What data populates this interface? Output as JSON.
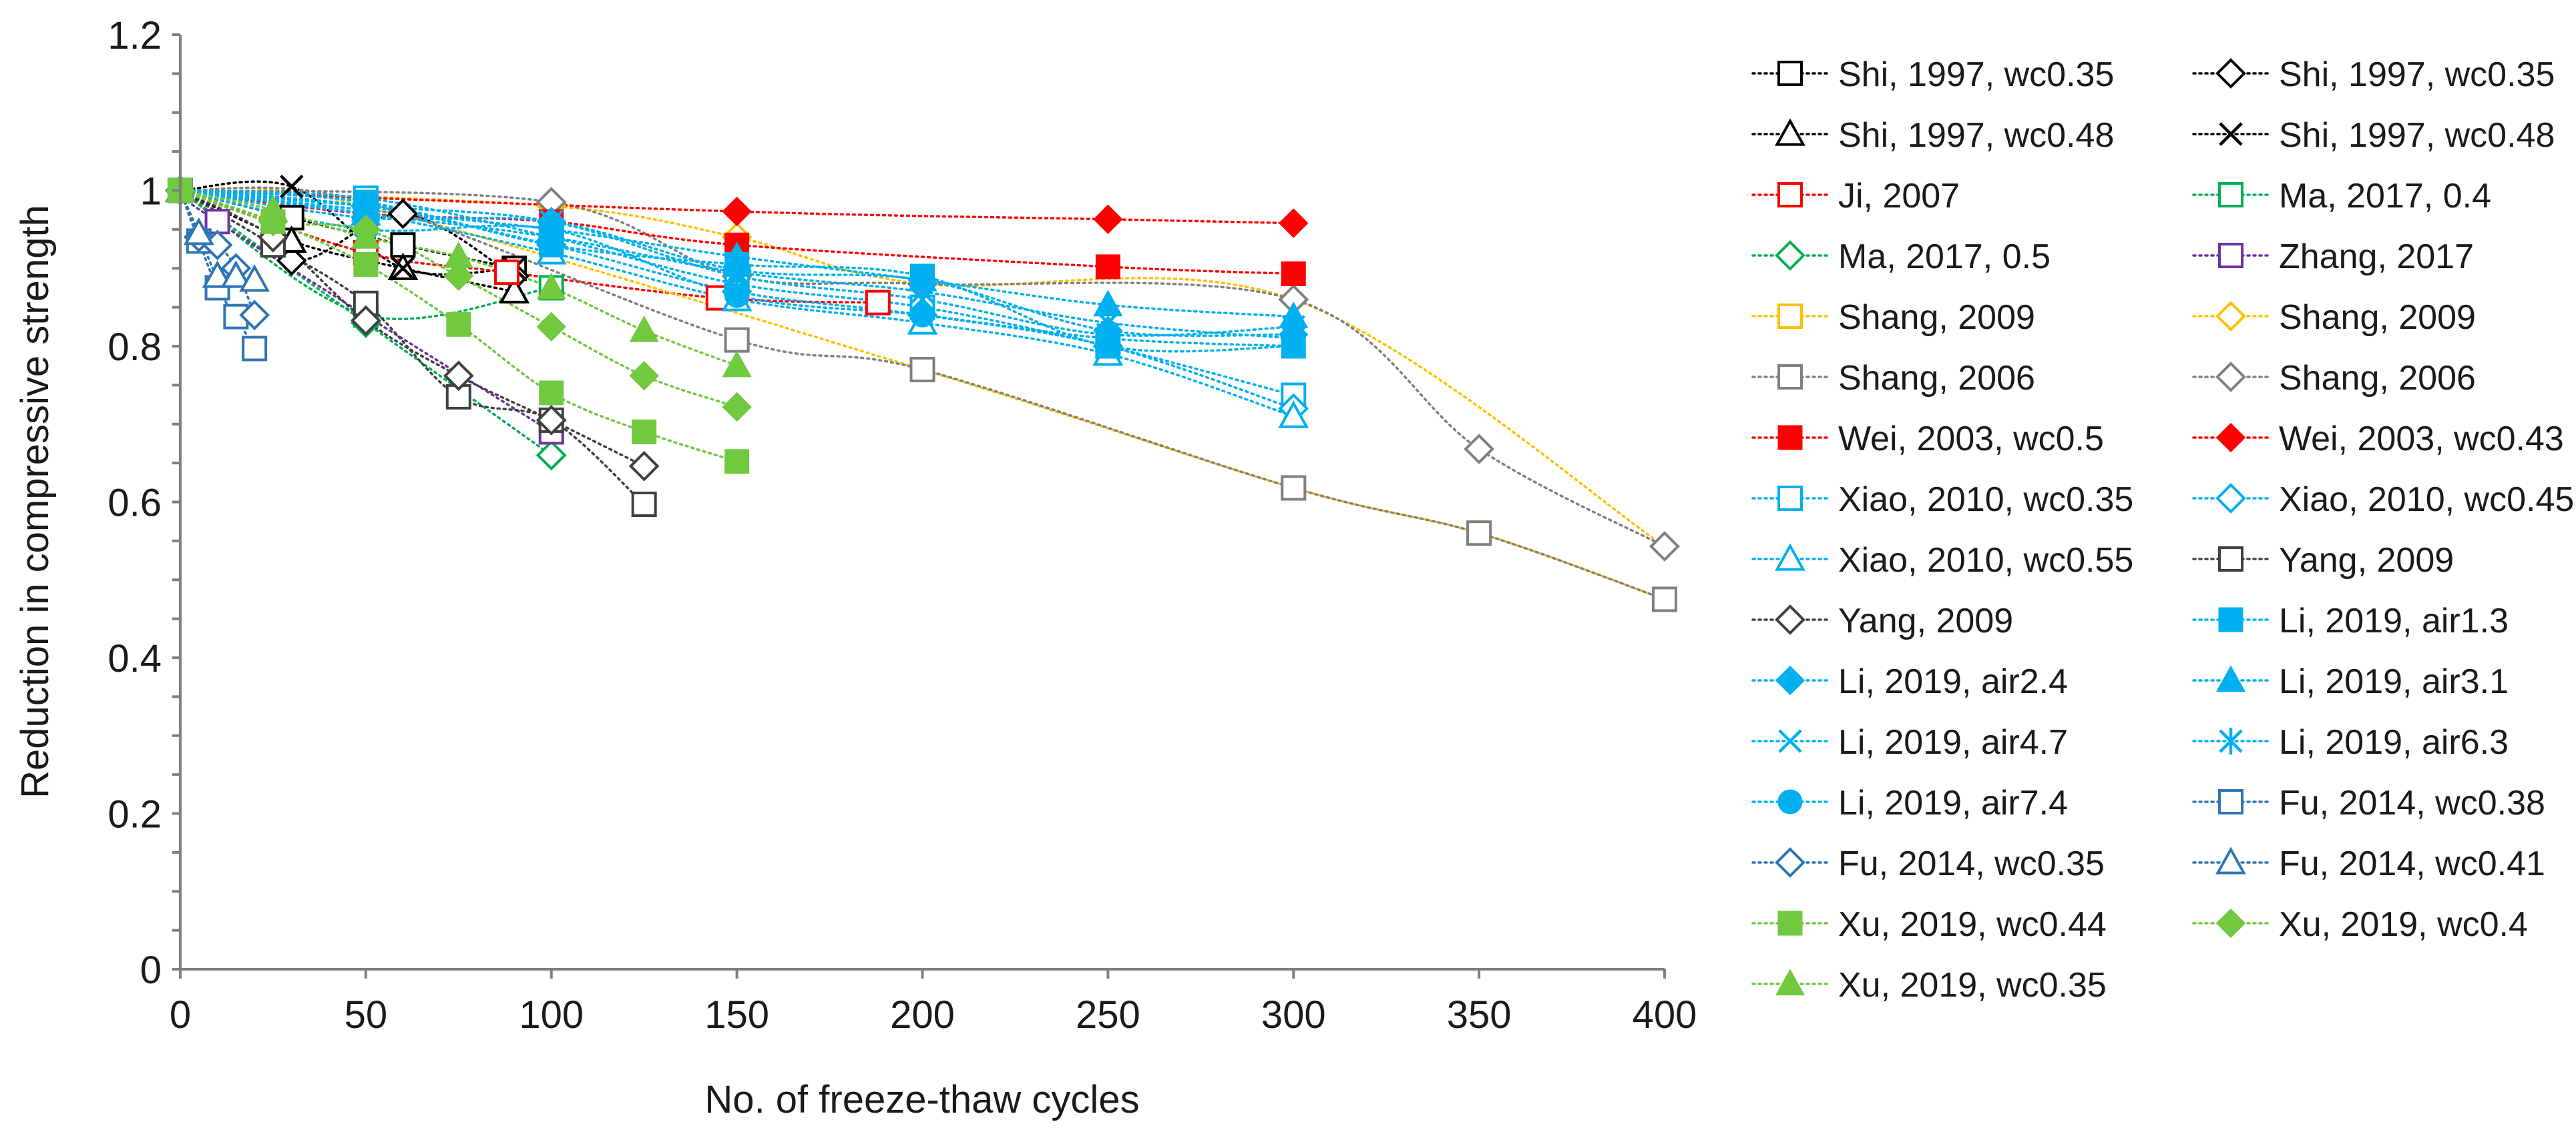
{
  "chart_data": {
    "type": "scatter",
    "title": "",
    "xlabel": "No. of freeze-thaw cycles",
    "ylabel": "Reduction in compressive strength",
    "xlim": [
      0,
      400
    ],
    "ylim": [
      0,
      1.2
    ],
    "x_ticks": [
      "0",
      "50",
      "100",
      "150",
      "200",
      "250",
      "300",
      "350",
      "400"
    ],
    "y_ticks": [
      "0",
      "0.2",
      "0.4",
      "0.6",
      "0.8",
      "1",
      "1.2"
    ],
    "grid": false,
    "legend_position": "right",
    "series": [
      {
        "name": "Shi, 1997, wc0.35",
        "color": "#000000",
        "marker": "square-open",
        "x": [
          0,
          30,
          60,
          90
        ],
        "y": [
          1.0,
          0.965,
          0.93,
          0.9
        ]
      },
      {
        "name": "Shi, 1997, wc0.35",
        "color": "#000000",
        "marker": "diamond-open",
        "x": [
          0,
          30,
          60,
          90
        ],
        "y": [
          1.0,
          0.91,
          0.97,
          0.89
        ]
      },
      {
        "name": "Shi, 1997, wc0.48",
        "color": "#000000",
        "marker": "triangle-open",
        "x": [
          0,
          30,
          60,
          90
        ],
        "y": [
          1.0,
          0.935,
          0.9,
          0.87
        ]
      },
      {
        "name": "Shi, 1997, wc0.48",
        "color": "#000000",
        "marker": "x",
        "x": [
          0,
          30,
          60,
          90
        ],
        "y": [
          1.0,
          1.005,
          0.9,
          0.9
        ]
      },
      {
        "name": "Ji, 2007",
        "color": "#ff0000",
        "marker": "square-open",
        "x": [
          0,
          50,
          88,
          145,
          188
        ],
        "y": [
          1.0,
          0.92,
          0.895,
          0.862,
          0.856
        ]
      },
      {
        "name": "Ma, 2017, 0.4",
        "color": "#00b050",
        "marker": "square-open",
        "x": [
          0,
          50,
          100
        ],
        "y": [
          1.0,
          0.84,
          0.875
        ]
      },
      {
        "name": "Ma, 2017, 0.5",
        "color": "#00b050",
        "marker": "diamond-open",
        "x": [
          0,
          50,
          100
        ],
        "y": [
          1.0,
          0.83,
          0.66
        ]
      },
      {
        "name": "Zhang, 2017",
        "color": "#7030a0",
        "marker": "square-open",
        "x": [
          0,
          10,
          100
        ],
        "y": [
          1.0,
          0.96,
          0.69
        ]
      },
      {
        "name": "Shang, 2009",
        "color": "#ffc000",
        "marker": "square-open",
        "x": [
          0,
          50,
          200,
          300,
          350,
          400
        ],
        "y": [
          1.0,
          0.98,
          0.77,
          0.618,
          0.56,
          0.475
        ]
      },
      {
        "name": "Shang, 2009",
        "color": "#ffc000",
        "marker": "diamond-open",
        "x": [
          0,
          100,
          150,
          200,
          300,
          400
        ],
        "y": [
          1.0,
          0.98,
          0.94,
          0.88,
          0.86,
          0.543
        ]
      },
      {
        "name": "Shang, 2006",
        "color": "#808080",
        "marker": "square-open",
        "x": [
          0,
          50,
          150,
          200,
          300,
          350,
          400
        ],
        "y": [
          1.0,
          0.985,
          0.808,
          0.77,
          0.618,
          0.56,
          0.475
        ]
      },
      {
        "name": "Shang, 2006",
        "color": "#808080",
        "marker": "diamond-open",
        "x": [
          0,
          100,
          150,
          200,
          300,
          350,
          400
        ],
        "y": [
          1.0,
          0.985,
          0.89,
          0.88,
          0.86,
          0.668,
          0.543
        ]
      },
      {
        "name": "Wei, 2003, wc0.5",
        "color": "#ff0000",
        "marker": "square-filled",
        "x": [
          0,
          50,
          100,
          150,
          250,
          300
        ],
        "y": [
          1.0,
          0.97,
          0.96,
          0.93,
          0.902,
          0.893
        ]
      },
      {
        "name": "Wei, 2003, wc0.43",
        "color": "#ff0000",
        "marker": "diamond-filled",
        "x": [
          0,
          150,
          250,
          300
        ],
        "y": [
          1.0,
          0.973,
          0.963,
          0.958
        ]
      },
      {
        "name": "Xiao, 2010, wc0.35",
        "color": "#00b0f0",
        "marker": "square-open",
        "x": [
          0,
          50,
          100,
          150,
          200,
          250,
          300
        ],
        "y": [
          1.0,
          0.99,
          0.94,
          0.88,
          0.85,
          0.8,
          0.737
        ]
      },
      {
        "name": "Xiao, 2010, wc0.45",
        "color": "#00b0f0",
        "marker": "diamond-open",
        "x": [
          0,
          50,
          100,
          150,
          200,
          250,
          300
        ],
        "y": [
          1.0,
          0.98,
          0.93,
          0.87,
          0.84,
          0.8,
          0.72
        ]
      },
      {
        "name": "Xiao, 2010, wc0.55",
        "color": "#00b0f0",
        "marker": "triangle-open",
        "x": [
          0,
          50,
          100,
          150,
          200,
          250,
          300
        ],
        "y": [
          1.0,
          0.97,
          0.92,
          0.86,
          0.83,
          0.79,
          0.71
        ]
      },
      {
        "name": "Yang, 2009",
        "color": "#404040",
        "marker": "square-open",
        "x": [
          0,
          25,
          50,
          75,
          100,
          125
        ],
        "y": [
          1.0,
          0.93,
          0.855,
          0.735,
          0.705,
          0.597
        ]
      },
      {
        "name": "Yang, 2009",
        "color": "#404040",
        "marker": "diamond-open",
        "x": [
          0,
          25,
          50,
          75,
          100,
          125
        ],
        "y": [
          1.0,
          0.94,
          0.833,
          0.762,
          0.705,
          0.646
        ]
      },
      {
        "name": "Li, 2019, air1.3",
        "color": "#00b0f0",
        "marker": "square-filled",
        "x": [
          0,
          50,
          100,
          150,
          200,
          250,
          300
        ],
        "y": [
          1.0,
          0.985,
          0.93,
          0.905,
          0.89,
          0.8,
          0.8
        ]
      },
      {
        "name": "Li, 2019, air2.4",
        "color": "#00b0f0",
        "marker": "diamond-filled",
        "x": [
          0,
          50,
          100,
          150,
          200,
          250,
          300
        ],
        "y": [
          1.0,
          0.965,
          0.96,
          0.898,
          0.885,
          0.82,
          0.815
        ]
      },
      {
        "name": "Li, 2019, air3.1",
        "color": "#00b0f0",
        "marker": "triangle-filled",
        "x": [
          0,
          50,
          100,
          150,
          200,
          250,
          300
        ],
        "y": [
          1.0,
          0.975,
          0.95,
          0.915,
          0.885,
          0.853,
          0.838
        ]
      },
      {
        "name": "Li, 2019, air4.7",
        "color": "#00b0f0",
        "marker": "x",
        "x": [
          0,
          50,
          100,
          150,
          200,
          250,
          300
        ],
        "y": [
          1.0,
          0.97,
          0.94,
          0.895,
          0.87,
          0.83,
          0.81
        ]
      },
      {
        "name": "Li, 2019, air6.3",
        "color": "#00b0f0",
        "marker": "asterisk",
        "x": [
          0,
          50,
          100,
          150,
          200,
          250,
          300
        ],
        "y": [
          1.0,
          0.98,
          0.96,
          0.89,
          0.86,
          0.815,
          0.825
        ]
      },
      {
        "name": "Li, 2019, air7.4",
        "color": "#00b0f0",
        "marker": "circle-filled",
        "x": [
          0,
          50,
          100,
          150,
          200,
          250,
          300
        ],
        "y": [
          1.0,
          0.95,
          0.95,
          0.865,
          0.84,
          0.81,
          0.8
        ]
      },
      {
        "name": "Fu, 2014, wc0.38",
        "color": "#2e75b6",
        "marker": "square-open",
        "x": [
          0,
          5,
          10,
          15,
          20
        ],
        "y": [
          1.0,
          0.935,
          0.875,
          0.838,
          0.797
        ]
      },
      {
        "name": "Fu, 2014, wc0.35",
        "color": "#2e75b6",
        "marker": "diamond-open",
        "x": [
          0,
          5,
          10,
          15,
          20
        ],
        "y": [
          1.0,
          0.94,
          0.93,
          0.9,
          0.84
        ]
      },
      {
        "name": "Fu, 2014, wc0.41",
        "color": "#2e75b6",
        "marker": "triangle-open",
        "x": [
          0,
          5,
          10,
          15,
          20
        ],
        "y": [
          1.0,
          0.945,
          0.89,
          0.89,
          0.885
        ]
      },
      {
        "name": "Xu, 2019, wc0.44",
        "color": "#70c93f",
        "marker": "square-filled",
        "x": [
          0,
          25,
          50,
          75,
          100,
          125,
          150
        ],
        "y": [
          1.0,
          0.96,
          0.905,
          0.828,
          0.74,
          0.69,
          0.652
        ]
      },
      {
        "name": "Xu, 2019, wc0.4",
        "color": "#70c93f",
        "marker": "diamond-filled",
        "x": [
          0,
          25,
          50,
          75,
          100,
          125,
          150
        ],
        "y": [
          1.0,
          0.96,
          0.95,
          0.89,
          0.825,
          0.762,
          0.722
        ]
      },
      {
        "name": "Xu, 2019, wc0.35",
        "color": "#70c93f",
        "marker": "triangle-filled",
        "x": [
          0,
          25,
          50,
          75,
          100,
          125,
          150
        ],
        "y": [
          1.0,
          0.975,
          0.94,
          0.915,
          0.875,
          0.82,
          0.775
        ]
      }
    ]
  }
}
